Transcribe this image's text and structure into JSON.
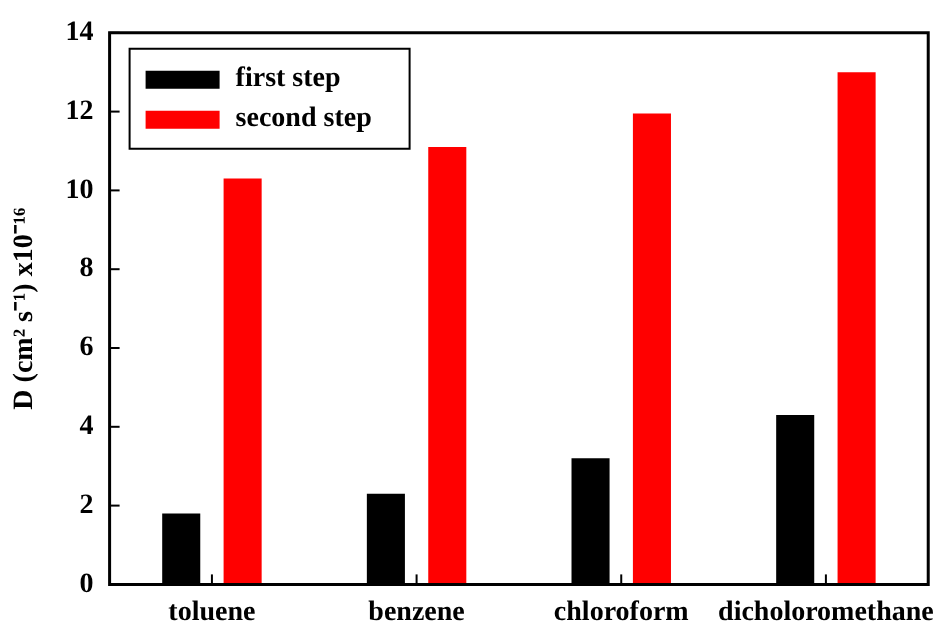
{
  "chart_data": {
    "type": "bar",
    "ylabel": "D (cm² s⁻¹) x10⁻¹⁶",
    "categories": [
      "toluene",
      "benzene",
      "chloroform",
      "dicholoromethane"
    ],
    "series": [
      {
        "name": "first step",
        "color": "#000000",
        "values": [
          1.8,
          2.3,
          3.2,
          4.3
        ]
      },
      {
        "name": "second step",
        "color": "#ff0000",
        "values": [
          10.3,
          11.1,
          11.95,
          13.0
        ]
      }
    ],
    "ylim": [
      0,
      14
    ],
    "yticks": [
      0,
      2,
      4,
      6,
      8,
      10,
      12,
      14
    ],
    "grid": false,
    "legend": "top left"
  }
}
